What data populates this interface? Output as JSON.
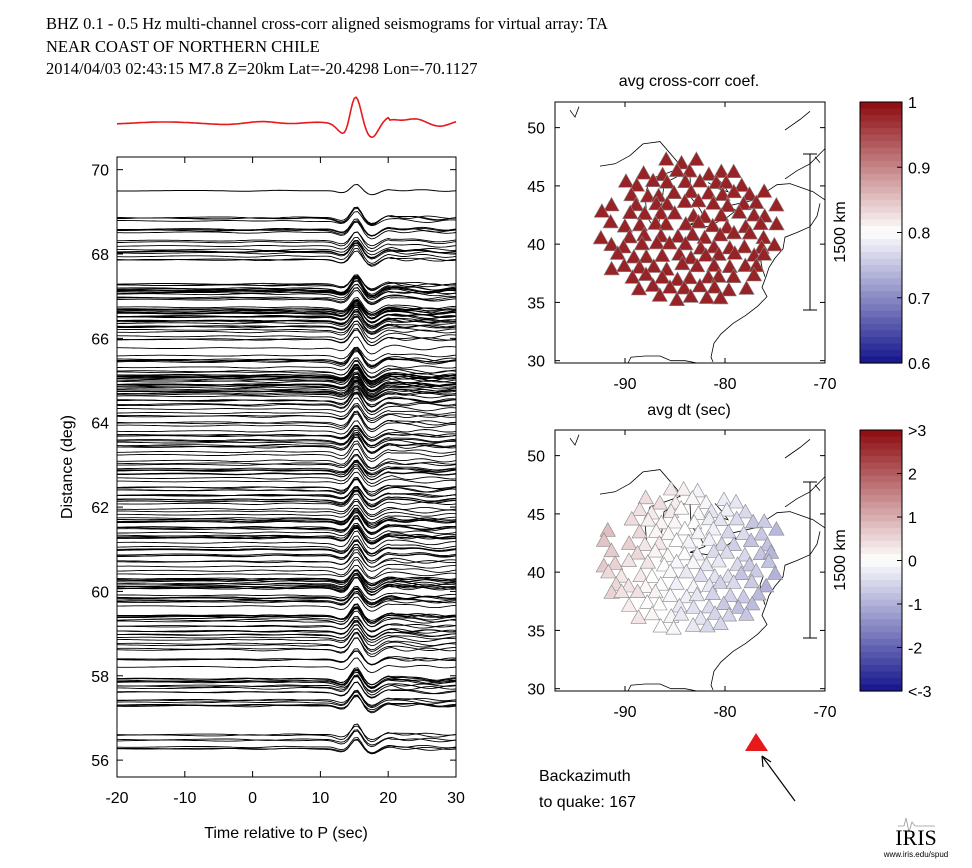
{
  "header": {
    "line1": "BHZ  0.1 - 0.5 Hz  multi-channel cross-corr aligned seismograms for virtual array: TA",
    "line2": "NEAR COAST OF NORTHERN CHILE",
    "line3": "2014/04/03  02:43:15  M7.8  Z=20km Lat=-20.4298 Lon=-70.1127"
  },
  "colors": {
    "stack_trace": "#e8191b",
    "traces": "#000000",
    "backazimuth_marker": "#e8191b"
  },
  "chart_data": [
    {
      "type": "line",
      "name": "seismogram-section",
      "xlabel": "Time relative to P (sec)",
      "ylabel": "Distance (deg)",
      "xlim": [
        -20,
        30
      ],
      "ylim": [
        55.6,
        70.3
      ],
      "xticks": [
        "-20",
        "-10",
        "0",
        "10",
        "20",
        "30"
      ],
      "yticks": [
        "56",
        "58",
        "60",
        "62",
        "64",
        "66",
        "68",
        "70"
      ],
      "grid": false,
      "stack_trace_distance": 69.5,
      "trace_distance_range": [
        56.2,
        68.9
      ],
      "trace_count": 240
    },
    {
      "type": "scatter",
      "name": "avg-cc-map",
      "title": "avg cross-corr coef.",
      "xlim": [
        -97,
        -70
      ],
      "ylim": [
        29.8,
        52.2
      ],
      "xticks": [
        "-90",
        "-80",
        "-70"
      ],
      "yticks": [
        "30",
        "35",
        "40",
        "45",
        "50"
      ],
      "scalebar_label": "1500 km",
      "colorbar": {
        "min": 0.6,
        "max": 1,
        "ticks": [
          "0.6",
          "0.7",
          "0.8",
          "0.9",
          "1"
        ]
      },
      "marker": "triangle",
      "value": 0.98
    },
    {
      "type": "scatter",
      "name": "avg-dt-map",
      "title": "avg dt (sec)",
      "xlim": [
        -97,
        -70
      ],
      "ylim": [
        29.8,
        52.2
      ],
      "xticks": [
        "-90",
        "-80",
        "-70"
      ],
      "yticks": [
        "30",
        "35",
        "40",
        "45",
        "50"
      ],
      "scalebar_label": "1500 km",
      "colorbar": {
        "min": -3,
        "max": 3,
        "ticks": [
          "<-3",
          "-2",
          "-1",
          "0",
          "1",
          "2",
          ">3"
        ]
      },
      "marker": "triangle",
      "dt_range_seconds": [
        -1.0,
        0.8
      ]
    }
  ],
  "backazimuth": {
    "label_line1": "Backazimuth",
    "label_line2": "to quake:  167",
    "value_deg": 167
  },
  "logo": {
    "name": "IRIS",
    "url_text": "www.iris.edu/spud"
  }
}
